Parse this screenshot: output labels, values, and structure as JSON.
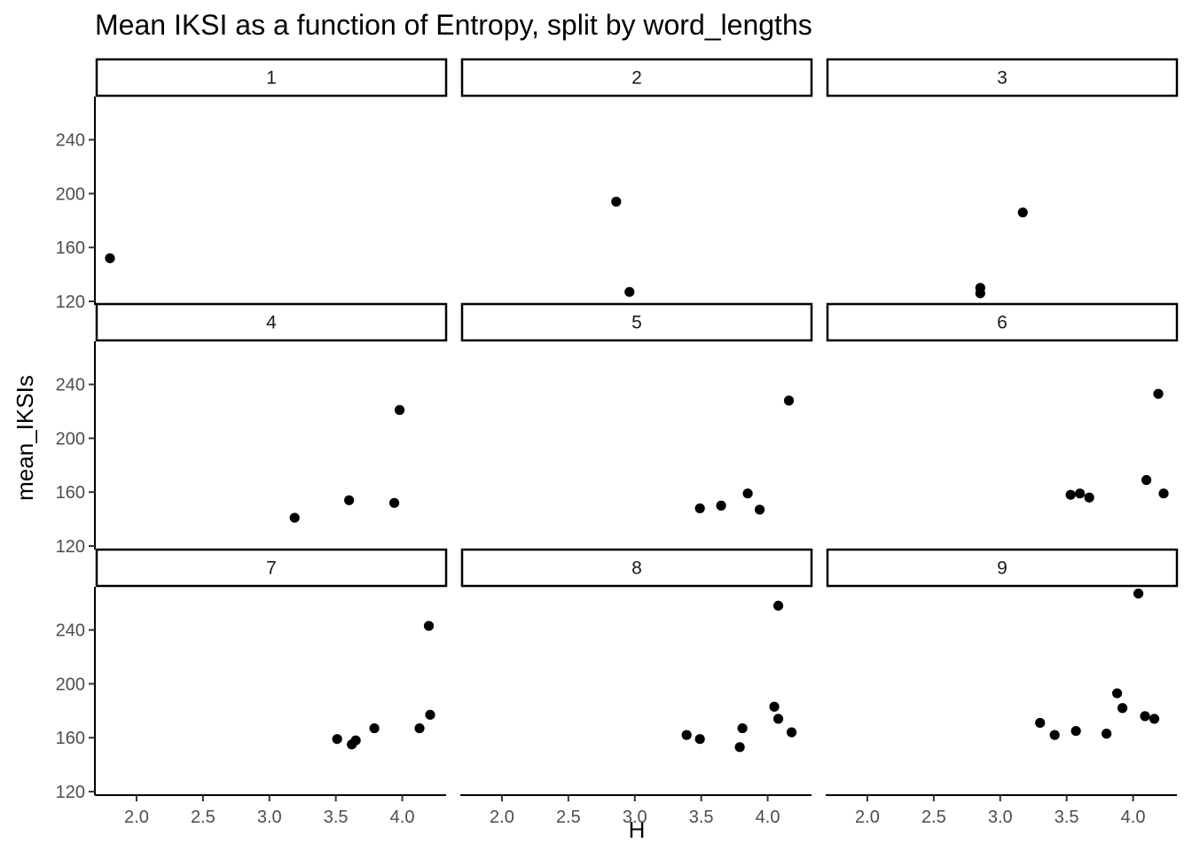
{
  "chart_data": {
    "type": "scatter",
    "title": "Mean IKSI as a function of Entropy, split by word_lengths",
    "xlabel": "H",
    "ylabel": "mean_IKSIs",
    "xlim": [
      1.7,
      4.33
    ],
    "ylim": [
      118,
      272
    ],
    "x_ticks": [
      {
        "value": 2.0,
        "label": "2.0"
      },
      {
        "value": 2.5,
        "label": "2.5"
      },
      {
        "value": 3.0,
        "label": "3.0"
      },
      {
        "value": 3.5,
        "label": "3.5"
      },
      {
        "value": 4.0,
        "label": "4.0"
      }
    ],
    "y_ticks": [
      {
        "value": 120,
        "label": "120"
      },
      {
        "value": 160,
        "label": "160"
      },
      {
        "value": 200,
        "label": "200"
      },
      {
        "value": 240,
        "label": "240"
      }
    ],
    "facet_variable": "word_lengths",
    "facets": [
      {
        "label": "1",
        "points": [
          {
            "x": 1.8,
            "y": 152
          }
        ]
      },
      {
        "label": "2",
        "points": [
          {
            "x": 2.86,
            "y": 194
          },
          {
            "x": 2.96,
            "y": 127
          }
        ]
      },
      {
        "label": "3",
        "points": [
          {
            "x": 2.85,
            "y": 130
          },
          {
            "x": 2.85,
            "y": 126
          },
          {
            "x": 3.17,
            "y": 186
          }
        ]
      },
      {
        "label": "4",
        "points": [
          {
            "x": 3.19,
            "y": 141
          },
          {
            "x": 3.6,
            "y": 154
          },
          {
            "x": 3.94,
            "y": 152
          },
          {
            "x": 3.98,
            "y": 221
          }
        ]
      },
      {
        "label": "5",
        "points": [
          {
            "x": 3.49,
            "y": 148
          },
          {
            "x": 3.65,
            "y": 150
          },
          {
            "x": 3.85,
            "y": 159
          },
          {
            "x": 3.94,
            "y": 147
          },
          {
            "x": 4.16,
            "y": 228
          }
        ]
      },
      {
        "label": "6",
        "points": [
          {
            "x": 3.53,
            "y": 158
          },
          {
            "x": 3.6,
            "y": 159
          },
          {
            "x": 3.67,
            "y": 156
          },
          {
            "x": 4.1,
            "y": 169
          },
          {
            "x": 4.19,
            "y": 233
          },
          {
            "x": 4.23,
            "y": 159
          }
        ]
      },
      {
        "label": "7",
        "points": [
          {
            "x": 3.51,
            "y": 159
          },
          {
            "x": 3.62,
            "y": 155
          },
          {
            "x": 3.65,
            "y": 158
          },
          {
            "x": 3.79,
            "y": 167
          },
          {
            "x": 4.13,
            "y": 167
          },
          {
            "x": 4.2,
            "y": 243
          },
          {
            "x": 4.21,
            "y": 177
          }
        ]
      },
      {
        "label": "8",
        "points": [
          {
            "x": 3.39,
            "y": 162
          },
          {
            "x": 3.49,
            "y": 159
          },
          {
            "x": 3.79,
            "y": 153
          },
          {
            "x": 3.81,
            "y": 167
          },
          {
            "x": 4.05,
            "y": 183
          },
          {
            "x": 4.08,
            "y": 174
          },
          {
            "x": 4.08,
            "y": 258
          },
          {
            "x": 4.18,
            "y": 164
          }
        ]
      },
      {
        "label": "9",
        "points": [
          {
            "x": 3.3,
            "y": 171
          },
          {
            "x": 3.41,
            "y": 162
          },
          {
            "x": 3.57,
            "y": 165
          },
          {
            "x": 3.8,
            "y": 163
          },
          {
            "x": 3.88,
            "y": 193
          },
          {
            "x": 3.92,
            "y": 182
          },
          {
            "x": 4.04,
            "y": 267
          },
          {
            "x": 4.09,
            "y": 176
          },
          {
            "x": 4.16,
            "y": 174
          }
        ]
      }
    ],
    "colors": {
      "points": "#000000",
      "tick_labels": "#4d4d4d",
      "background": "#ffffff"
    },
    "grid": false,
    "legend": "none"
  }
}
